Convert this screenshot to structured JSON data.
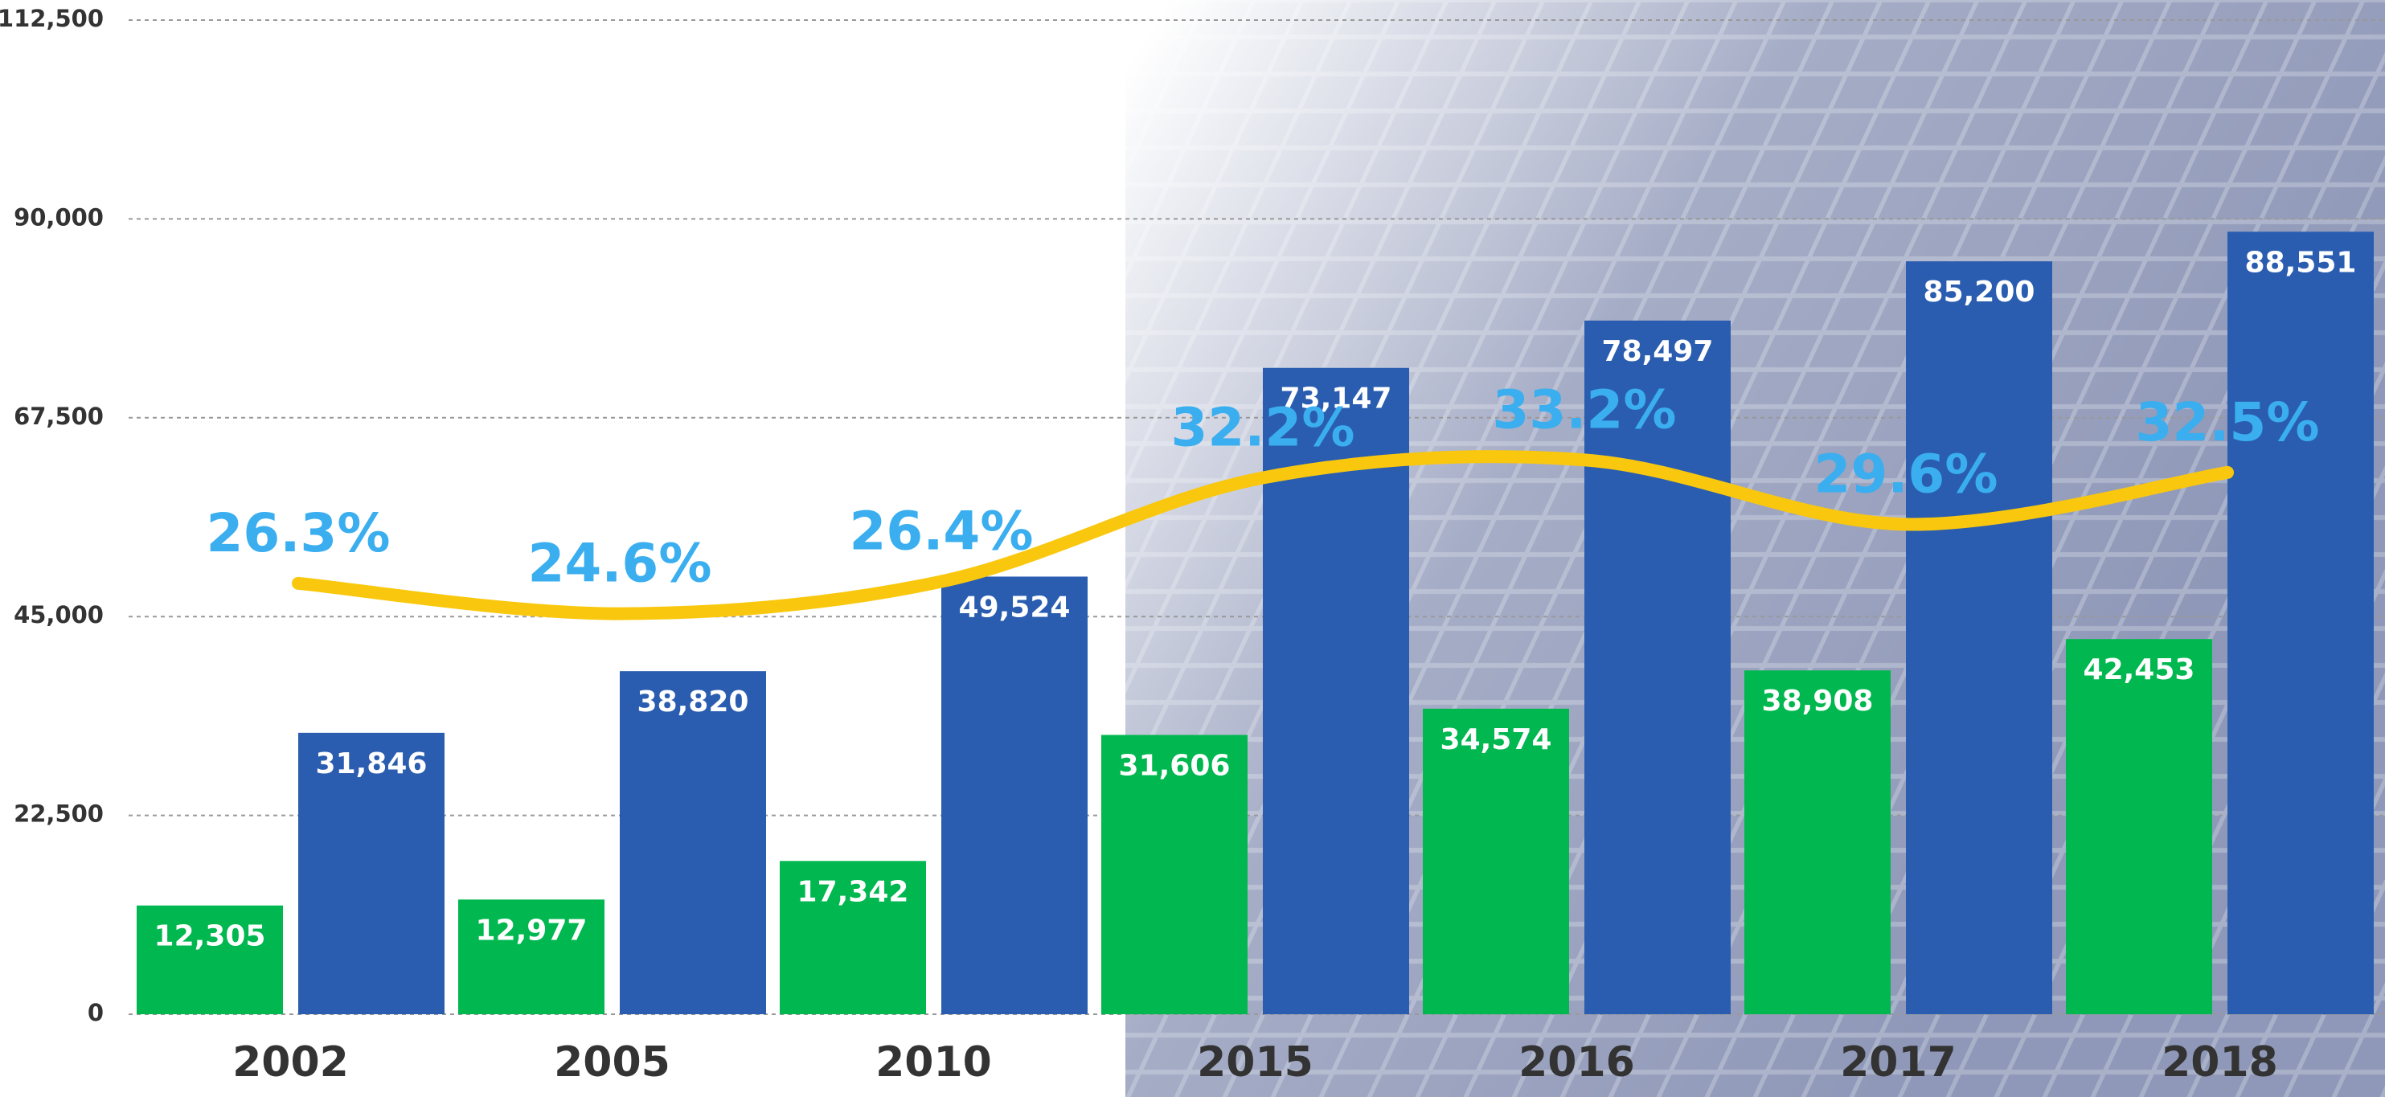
{
  "chart_data": {
    "type": "bar",
    "categories": [
      "2002",
      "2005",
      "2010",
      "2015",
      "2016",
      "2017",
      "2018"
    ],
    "series": [
      {
        "color": "#00b84f",
        "values": [
          12305,
          12977,
          17342,
          31606,
          34574,
          38908,
          42453
        ],
        "value_labels": [
          "12,305",
          "12,977",
          "17,342",
          "31,606",
          "34,574",
          "38,908",
          "42,453"
        ]
      },
      {
        "color": "#2a5db0",
        "values": [
          31846,
          38820,
          49524,
          73147,
          78497,
          85200,
          88551
        ],
        "value_labels": [
          "31,846",
          "38,820",
          "49,524",
          "73,147",
          "78,497",
          "85,200",
          "88,551"
        ]
      },
      {
        "type": "line",
        "axis": "y2",
        "color": "#f9c80e",
        "label_color": "#3aaeef",
        "values": [
          26.3,
          24.6,
          26.4,
          32.2,
          33.2,
          29.6,
          32.5
        ],
        "value_labels": [
          "26.3%",
          "24.6%",
          "26.4%",
          "32.2%",
          "33.2%",
          "29.6%",
          "32.5%"
        ]
      }
    ],
    "ylim": [
      0,
      112500
    ],
    "yticks": [
      0,
      {
        "value": 22500,
        "label": "22,500"
      },
      {
        "value": 45000,
        "label": "45,000"
      },
      {
        "value": 67500,
        "label": "67,500"
      },
      {
        "value": 90000,
        "label": "90,000"
      },
      {
        "value": 112500,
        "label": "112,500"
      }
    ],
    "y2lim": [
      2.2,
      57.8
    ],
    "grid": true
  }
}
